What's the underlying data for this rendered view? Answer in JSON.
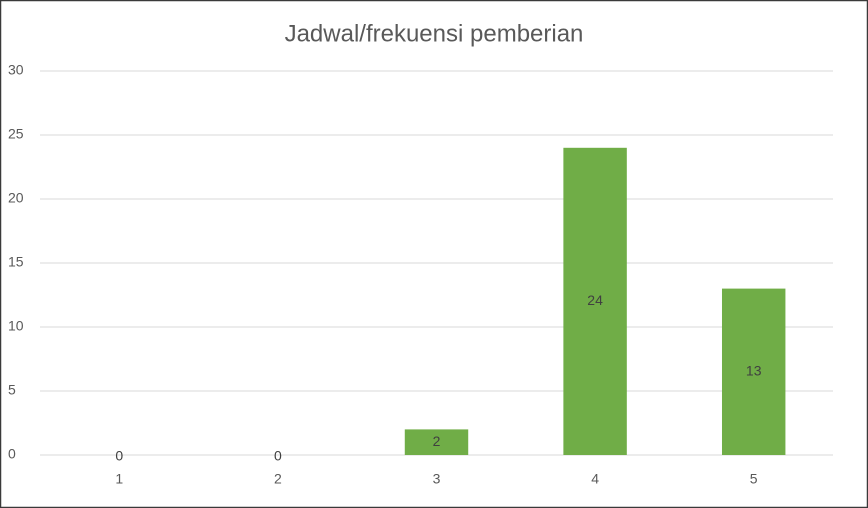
{
  "chart_data": {
    "type": "bar",
    "title": "Jadwal/frekuensi pemberian",
    "categories": [
      "1",
      "2",
      "3",
      "4",
      "5"
    ],
    "values": [
      0,
      0,
      2,
      24,
      13
    ],
    "color": "#70ad47",
    "ylim": [
      0,
      30
    ],
    "yticks": [
      0,
      5,
      10,
      15,
      20,
      25,
      30
    ],
    "grid": true
  }
}
